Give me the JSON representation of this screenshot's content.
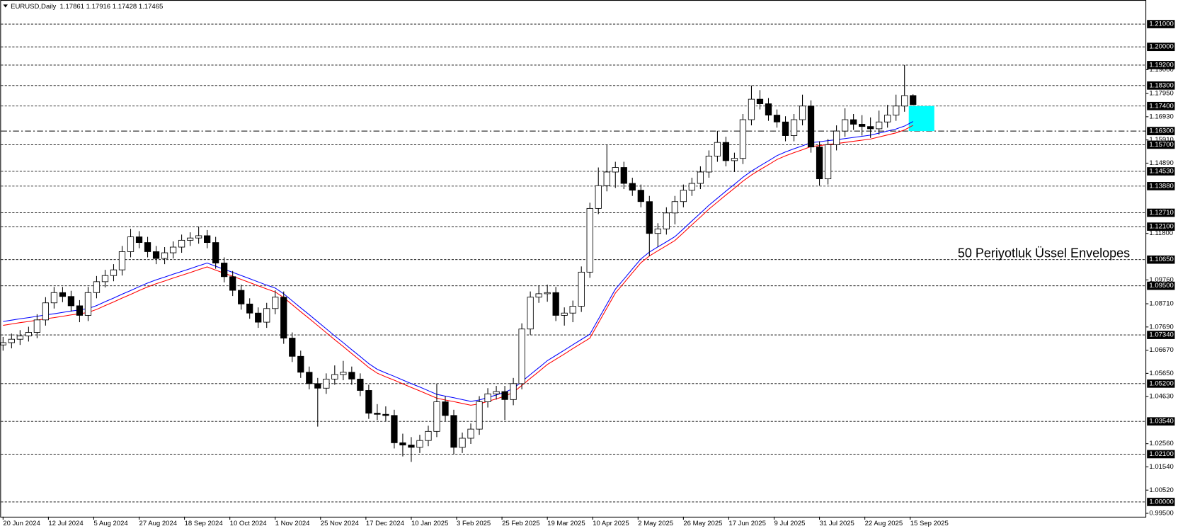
{
  "chart_data": {
    "type": "candlestick",
    "title": "EURUSD,Daily  1.17861 1.17916 1.17428 1.17465",
    "annotation": "50 Periyotluk Üssel Envelopes",
    "annotation_color": "#ff4000",
    "up_color": "#ffffff",
    "down_color": "#000000",
    "line_color": "#000000",
    "xlim": [
      -1,
      403
    ],
    "ylim": [
      0.9935,
      1.2206
    ],
    "xticks": [
      {
        "value": 0,
        "label": "20 Jun 2024"
      },
      {
        "value": 16,
        "label": "12 Jul 2024"
      },
      {
        "value": 32,
        "label": "5 Aug 2024"
      },
      {
        "value": 48,
        "label": "27 Aug 2024"
      },
      {
        "value": 64,
        "label": "18 Sep 2024"
      },
      {
        "value": 80,
        "label": "10 Oct 2024"
      },
      {
        "value": 96,
        "label": "1 Nov 2024"
      },
      {
        "value": 112,
        "label": "25 Nov 2024"
      },
      {
        "value": 128,
        "label": "17 Dec 2024"
      },
      {
        "value": 144,
        "label": "10 Jan 2025"
      },
      {
        "value": 160,
        "label": "3 Feb 2025"
      },
      {
        "value": 176,
        "label": "25 Feb 2025"
      },
      {
        "value": 192,
        "label": "19 Mar 2025"
      },
      {
        "value": 208,
        "label": "10 Apr 2025"
      },
      {
        "value": 224,
        "label": "2 May 2025"
      },
      {
        "value": 240,
        "label": "26 May 2025"
      },
      {
        "value": 256,
        "label": "17 Jun 2025"
      },
      {
        "value": 272,
        "label": "9 Jul 2025"
      },
      {
        "value": 288,
        "label": "31 Jul 2025"
      },
      {
        "value": 304,
        "label": "22 Aug 2025"
      },
      {
        "value": 320,
        "label": "15 Sep 2025"
      }
    ],
    "yticks": [
      {
        "value": 1.19,
        "label": "1.19000"
      },
      {
        "value": 1.1795,
        "label": "1.17950"
      },
      {
        "value": 1.1693,
        "label": "1.16930"
      },
      {
        "value": 1.1591,
        "label": "1.15910"
      },
      {
        "value": 1.1489,
        "label": "1.14890"
      },
      {
        "value": 1.118,
        "label": "1.11800"
      },
      {
        "value": 1.0976,
        "label": "1.09760"
      },
      {
        "value": 1.0871,
        "label": "1.08710"
      },
      {
        "value": 1.0769,
        "label": "1.07690"
      },
      {
        "value": 1.0667,
        "label": "1.06670"
      },
      {
        "value": 1.0565,
        "label": "1.05650"
      },
      {
        "value": 1.0463,
        "label": "1.04630"
      },
      {
        "value": 1.0256,
        "label": "1.02560"
      },
      {
        "value": 1.0154,
        "label": "1.01540"
      },
      {
        "value": 1.0052,
        "label": "1.00520"
      },
      {
        "value": 0.995,
        "label": "0.99500"
      }
    ],
    "levels": [
      {
        "value": 1.21,
        "label": "1.21000"
      },
      {
        "value": 1.2,
        "label": "1.20000"
      },
      {
        "value": 1.192,
        "label": "1.19200"
      },
      {
        "value": 1.183,
        "label": "1.18300"
      },
      {
        "value": 1.174,
        "label": "1.17400"
      },
      {
        "value": 1.157,
        "label": "1.15700"
      },
      {
        "value": 1.1453,
        "label": "1.14530"
      },
      {
        "value": 1.1388,
        "label": "1.13880"
      },
      {
        "value": 1.1271,
        "label": "1.12710"
      },
      {
        "value": 1.121,
        "label": "1.12100"
      },
      {
        "value": 1.1065,
        "label": "1.10650"
      },
      {
        "value": 1.095,
        "label": "1.09500"
      },
      {
        "value": 1.0734,
        "label": "1.07340"
      },
      {
        "value": 1.052,
        "label": "1.05200"
      },
      {
        "value": 1.0354,
        "label": "1.03540"
      },
      {
        "value": 1.021,
        "label": "1.02100"
      },
      {
        "value": 1.0,
        "label": "1.00000"
      }
    ],
    "dashdot_level": {
      "value": 1.163,
      "label": "1.16300"
    },
    "zone": {
      "top": 1.174,
      "bottom": 1.163,
      "color": "#00ffff"
    },
    "x": [
      0,
      3,
      6,
      9,
      12,
      15,
      18,
      21,
      24,
      27,
      30,
      33,
      36,
      39,
      42,
      45,
      48,
      51,
      54,
      57,
      60,
      63,
      66,
      69,
      72,
      75,
      78,
      81,
      84,
      87,
      90,
      93,
      96,
      99,
      102,
      105,
      108,
      111,
      114,
      117,
      120,
      123,
      126,
      129,
      132,
      135,
      138,
      141,
      144,
      147,
      150,
      153,
      156,
      159,
      162,
      165,
      168,
      171,
      174,
      177,
      180,
      183,
      186,
      189,
      192,
      195,
      198,
      201,
      204,
      207,
      210,
      213,
      216,
      219,
      222,
      225,
      228,
      231,
      234,
      237,
      240,
      243,
      246,
      249,
      252,
      255,
      258,
      261,
      264,
      267,
      270,
      273,
      276,
      279,
      282,
      285,
      288,
      291,
      294,
      297,
      300,
      303,
      306,
      309,
      312,
      315,
      318,
      321
    ],
    "ohlc": [
      [
        1.069,
        1.0725,
        1.0665,
        1.07
      ],
      [
        1.07,
        1.074,
        1.0675,
        1.0715
      ],
      [
        1.0715,
        1.0755,
        1.069,
        1.073
      ],
      [
        1.073,
        1.077,
        1.0705,
        1.0745
      ],
      [
        1.0745,
        1.0825,
        1.072,
        1.08
      ],
      [
        1.08,
        1.09,
        1.0775,
        1.0875
      ],
      [
        1.0875,
        1.0945,
        1.085,
        1.092
      ],
      [
        1.092,
        1.0945,
        1.0878,
        1.0903
      ],
      [
        1.0903,
        1.0928,
        1.0837,
        1.0862
      ],
      [
        1.0862,
        1.0887,
        1.079,
        1.082
      ],
      [
        1.082,
        1.0945,
        1.0795,
        1.092
      ],
      [
        1.092,
        1.0993,
        1.0895,
        1.0968
      ],
      [
        1.0968,
        1.102,
        1.0943,
        1.0995
      ],
      [
        1.0995,
        1.1045,
        1.097,
        1.102
      ],
      [
        1.102,
        1.1125,
        1.0995,
        1.11
      ],
      [
        1.11,
        1.12,
        1.1075,
        1.1165
      ],
      [
        1.1165,
        1.119,
        1.1115,
        1.114
      ],
      [
        1.114,
        1.1165,
        1.1075,
        1.11
      ],
      [
        1.11,
        1.1125,
        1.1045,
        1.107
      ],
      [
        1.107,
        1.112,
        1.1045,
        1.1095
      ],
      [
        1.1095,
        1.1145,
        1.107,
        1.112
      ],
      [
        1.112,
        1.1175,
        1.1095,
        1.115
      ],
      [
        1.115,
        1.1185,
        1.1125,
        1.116
      ],
      [
        1.116,
        1.121,
        1.1135,
        1.117
      ],
      [
        1.117,
        1.1195,
        1.1115,
        1.114
      ],
      [
        1.114,
        1.1165,
        1.1025,
        1.105
      ],
      [
        1.105,
        1.1075,
        1.0965,
        1.099
      ],
      [
        1.099,
        1.1015,
        1.0905,
        1.093
      ],
      [
        1.093,
        1.0955,
        1.0845,
        1.087
      ],
      [
        1.087,
        1.0895,
        1.0805,
        1.083
      ],
      [
        1.083,
        1.0855,
        1.0765,
        1.079
      ],
      [
        1.079,
        1.0875,
        1.0765,
        1.085
      ],
      [
        1.085,
        1.093,
        1.0825,
        1.09
      ],
      [
        1.09,
        1.0925,
        1.0695,
        1.072
      ],
      [
        1.072,
        1.0745,
        1.0615,
        1.064
      ],
      [
        1.064,
        1.0665,
        1.0545,
        1.057
      ],
      [
        1.057,
        1.0595,
        1.0495,
        1.052
      ],
      [
        1.052,
        1.0545,
        1.0331,
        1.05
      ],
      [
        1.05,
        1.0565,
        1.0475,
        1.054
      ],
      [
        1.054,
        1.06,
        1.0515,
        1.056
      ],
      [
        1.056,
        1.062,
        1.0535,
        1.057
      ],
      [
        1.057,
        1.0595,
        1.0515,
        1.054
      ],
      [
        1.054,
        1.0565,
        1.0465,
        1.049
      ],
      [
        1.049,
        1.0515,
        1.0365,
        1.039
      ],
      [
        1.039,
        1.043,
        1.036,
        1.0385
      ],
      [
        1.0385,
        1.042,
        1.0355,
        1.038
      ],
      [
        1.038,
        1.0405,
        1.0235,
        1.026
      ],
      [
        1.026,
        1.03,
        1.02,
        1.025
      ],
      [
        1.025,
        1.0285,
        1.0176,
        1.024
      ],
      [
        1.024,
        1.0295,
        1.0215,
        1.027
      ],
      [
        1.027,
        1.0335,
        1.0245,
        1.031
      ],
      [
        1.031,
        1.052,
        1.0285,
        1.044
      ],
      [
        1.044,
        1.0465,
        1.0355,
        1.038
      ],
      [
        1.038,
        1.0405,
        1.0209,
        1.024
      ],
      [
        1.024,
        1.0305,
        1.0215,
        1.028
      ],
      [
        1.028,
        1.0345,
        1.0255,
        1.032
      ],
      [
        1.032,
        1.0465,
        1.0295,
        1.044
      ],
      [
        1.044,
        1.05,
        1.0415,
        1.0475
      ],
      [
        1.0475,
        1.051,
        1.045,
        1.0485
      ],
      [
        1.0485,
        1.051,
        1.036,
        1.045
      ],
      [
        1.045,
        1.0545,
        1.0425,
        1.052
      ],
      [
        1.052,
        1.0785,
        1.0495,
        1.076
      ],
      [
        1.076,
        1.0925,
        1.0735,
        1.09
      ],
      [
        1.09,
        1.095,
        1.0875,
        1.0915
      ],
      [
        1.0915,
        1.0955,
        1.088,
        1.092
      ],
      [
        1.092,
        1.0945,
        1.0795,
        1.082
      ],
      [
        1.082,
        1.0855,
        1.0775,
        1.083
      ],
      [
        1.083,
        1.0885,
        1.079,
        1.086
      ],
      [
        1.086,
        1.1035,
        1.0835,
        1.101
      ],
      [
        1.101,
        1.1315,
        1.0985,
        1.129
      ],
      [
        1.129,
        1.147,
        1.1265,
        1.139
      ],
      [
        1.139,
        1.157,
        1.1365,
        1.145
      ],
      [
        1.145,
        1.1495,
        1.138,
        1.147
      ],
      [
        1.147,
        1.1495,
        1.1375,
        1.14
      ],
      [
        1.14,
        1.1425,
        1.1345,
        1.137
      ],
      [
        1.137,
        1.1395,
        1.1295,
        1.132
      ],
      [
        1.132,
        1.1345,
        1.108,
        1.118
      ],
      [
        1.118,
        1.1225,
        1.112,
        1.12
      ],
      [
        1.12,
        1.1295,
        1.1175,
        1.127
      ],
      [
        1.127,
        1.1345,
        1.122,
        1.132
      ],
      [
        1.132,
        1.1395,
        1.1295,
        1.137
      ],
      [
        1.137,
        1.1425,
        1.1345,
        1.14
      ],
      [
        1.14,
        1.1475,
        1.1375,
        1.145
      ],
      [
        1.145,
        1.1545,
        1.1425,
        1.152
      ],
      [
        1.152,
        1.1631,
        1.1495,
        1.158
      ],
      [
        1.158,
        1.1605,
        1.1475,
        1.15
      ],
      [
        1.15,
        1.1535,
        1.145,
        1.151
      ],
      [
        1.151,
        1.1705,
        1.1485,
        1.168
      ],
      [
        1.168,
        1.183,
        1.1655,
        1.177
      ],
      [
        1.177,
        1.181,
        1.1725,
        1.175
      ],
      [
        1.175,
        1.1775,
        1.1675,
        1.17
      ],
      [
        1.17,
        1.1725,
        1.1645,
        1.167
      ],
      [
        1.167,
        1.1695,
        1.1585,
        1.161
      ],
      [
        1.161,
        1.1705,
        1.1585,
        1.168
      ],
      [
        1.168,
        1.179,
        1.1655,
        1.174
      ],
      [
        1.174,
        1.1765,
        1.1535,
        1.156
      ],
      [
        1.156,
        1.1585,
        1.139,
        1.142
      ],
      [
        1.142,
        1.1595,
        1.1395,
        1.157
      ],
      [
        1.157,
        1.1655,
        1.1545,
        1.163
      ],
      [
        1.163,
        1.173,
        1.1605,
        1.168
      ],
      [
        1.168,
        1.1705,
        1.1635,
        1.166
      ],
      [
        1.166,
        1.17,
        1.161,
        1.165
      ],
      [
        1.165,
        1.169,
        1.16,
        1.164
      ],
      [
        1.164,
        1.172,
        1.1615,
        1.167
      ],
      [
        1.167,
        1.1745,
        1.1645,
        1.17
      ],
      [
        1.17,
        1.179,
        1.1675,
        1.174
      ],
      [
        1.174,
        1.192,
        1.1715,
        1.1786
      ],
      [
        1.17861,
        1.17916,
        1.17428,
        1.17465
      ]
    ],
    "envelopes": [
      {
        "color": "#0000ff",
        "values": [
          1.0793,
          1.0799,
          1.0805,
          1.081,
          1.0816,
          1.0822,
          1.0827,
          1.0833,
          1.0839,
          1.0844,
          1.085,
          1.0863,
          1.088,
          1.0896,
          1.0913,
          1.0929,
          1.0946,
          1.0962,
          1.0976,
          1.0988,
          1.1001,
          1.1013,
          1.1025,
          1.1038,
          1.105,
          1.1036,
          1.1022,
          1.1009,
          1.0995,
          1.0981,
          1.0967,
          1.0953,
          1.094,
          1.0915,
          1.0884,
          1.0853,
          1.0823,
          1.0792,
          1.0761,
          1.073,
          1.07,
          1.0669,
          1.0639,
          1.0608,
          1.0583,
          1.0567,
          1.0552,
          1.0536,
          1.052,
          1.0505,
          1.0489,
          1.0473,
          1.0465,
          1.0458,
          1.045,
          1.0442,
          1.0448,
          1.0459,
          1.047,
          1.0482,
          1.0499,
          1.0529,
          1.056,
          1.059,
          1.0621,
          1.0644,
          1.0667,
          1.0691,
          1.0714,
          1.0737,
          1.0803,
          1.0869,
          1.0935,
          1.0979,
          1.1024,
          1.1068,
          1.1098,
          1.1121,
          1.1143,
          1.1166,
          1.12,
          1.1235,
          1.1269,
          1.1304,
          1.1335,
          1.1366,
          1.1396,
          1.1427,
          1.1454,
          1.1477,
          1.1499,
          1.1522,
          1.1538,
          1.1552,
          1.1565,
          1.1579,
          1.1583,
          1.1588,
          1.1592,
          1.1597,
          1.1602,
          1.1607,
          1.1612,
          1.1621,
          1.163,
          1.1639,
          1.1652,
          1.1672
        ]
      },
      {
        "color": "#ff0000",
        "values": [
          1.0776,
          1.0782,
          1.0788,
          1.0793,
          1.0799,
          1.0805,
          1.081,
          1.0816,
          1.0822,
          1.0827,
          1.0833,
          1.0846,
          1.0863,
          1.0879,
          1.0896,
          1.0912,
          1.0929,
          1.0945,
          1.0959,
          1.0971,
          1.0984,
          1.0996,
          1.1008,
          1.1021,
          1.1033,
          1.1019,
          1.1005,
          1.0992,
          1.0978,
          1.0964,
          1.095,
          1.0936,
          1.0923,
          1.0898,
          1.0867,
          1.0836,
          1.0806,
          1.0775,
          1.0744,
          1.0713,
          1.0683,
          1.0652,
          1.0622,
          1.0591,
          1.0566,
          1.055,
          1.0535,
          1.0519,
          1.0503,
          1.0488,
          1.0472,
          1.0456,
          1.0448,
          1.0441,
          1.0433,
          1.0425,
          1.0431,
          1.0442,
          1.0453,
          1.0465,
          1.0482,
          1.0512,
          1.0543,
          1.0573,
          1.0604,
          1.0627,
          1.065,
          1.0674,
          1.0697,
          1.072,
          1.0786,
          1.0852,
          1.0918,
          1.0962,
          1.1007,
          1.1051,
          1.1081,
          1.1104,
          1.1126,
          1.1149,
          1.1183,
          1.1218,
          1.1252,
          1.1287,
          1.1318,
          1.1349,
          1.1379,
          1.141,
          1.1437,
          1.146,
          1.1482,
          1.1505,
          1.1521,
          1.1535,
          1.1548,
          1.1562,
          1.1566,
          1.1571,
          1.1575,
          1.158,
          1.1585,
          1.159,
          1.1595,
          1.1604,
          1.1613,
          1.1622,
          1.1635,
          1.1655
        ]
      }
    ]
  }
}
